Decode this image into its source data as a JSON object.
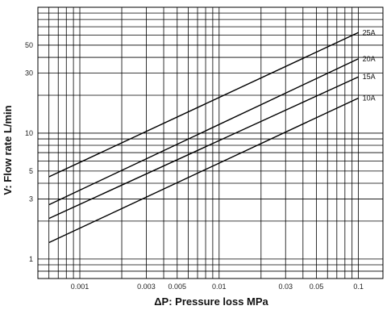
{
  "chart_data": {
    "type": "line",
    "title": "",
    "xlabel": "ΔP: Pressure loss MPa",
    "ylabel": "V: Flow rate L/min",
    "x_scale": "log",
    "y_scale": "log",
    "xlim": [
      0.0005,
      0.15
    ],
    "ylim": [
      0.7,
      100
    ],
    "grid": true,
    "x_ticks": [
      {
        "value": 0.001,
        "label": "0.001"
      },
      {
        "value": 0.003,
        "label": "0.003"
      },
      {
        "value": 0.005,
        "label": "0.005"
      },
      {
        "value": 0.01,
        "label": "0.01"
      },
      {
        "value": 0.03,
        "label": "0.03"
      },
      {
        "value": 0.05,
        "label": "0.05"
      },
      {
        "value": 0.1,
        "label": "0.1"
      }
    ],
    "y_ticks": [
      {
        "value": 1,
        "label": "1"
      },
      {
        "value": 3,
        "label": "3"
      },
      {
        "value": 5,
        "label": "5"
      },
      {
        "value": 10,
        "label": "10"
      },
      {
        "value": 30,
        "label": "30"
      },
      {
        "value": 50,
        "label": "50"
      }
    ],
    "series": [
      {
        "name": "25A",
        "x": [
          0.0006,
          0.1
        ],
        "y": [
          4.5,
          63
        ]
      },
      {
        "name": "20A",
        "x": [
          0.0006,
          0.1
        ],
        "y": [
          2.7,
          39
        ]
      },
      {
        "name": "15A",
        "x": [
          0.0006,
          0.1
        ],
        "y": [
          2.1,
          28
        ]
      },
      {
        "name": "10A",
        "x": [
          0.0006,
          0.1
        ],
        "y": [
          1.35,
          19
        ]
      }
    ]
  }
}
